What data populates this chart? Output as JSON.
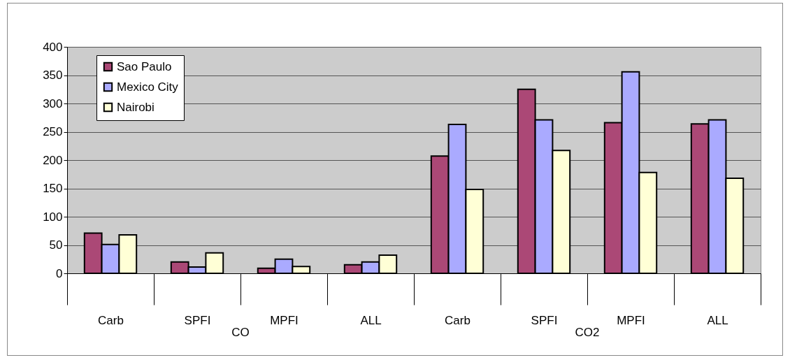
{
  "chart_data": {
    "type": "bar",
    "categories": [
      "Carb",
      "SPFI",
      "MPFI",
      "ALL",
      "Carb",
      "SPFI",
      "MPFI",
      "ALL"
    ],
    "series": [
      {
        "name": "Sao Paulo",
        "color": "#ab4876",
        "values": [
          71,
          20,
          9,
          15,
          207,
          325,
          266,
          264
        ]
      },
      {
        "name": "Mexico City",
        "color": "#aaaaff",
        "values": [
          51,
          11,
          25,
          20,
          263,
          271,
          356,
          271
        ]
      },
      {
        "name": "Nairobi",
        "color": "#ffffd6",
        "values": [
          68,
          36,
          12,
          32,
          148,
          217,
          178,
          168
        ]
      }
    ],
    "annotations": [
      "CO",
      "CO2"
    ],
    "ylim": [
      0,
      400
    ],
    "yticks": [
      0,
      50,
      100,
      150,
      200,
      250,
      300,
      350,
      400
    ],
    "grid": "y",
    "legend": "top left"
  }
}
